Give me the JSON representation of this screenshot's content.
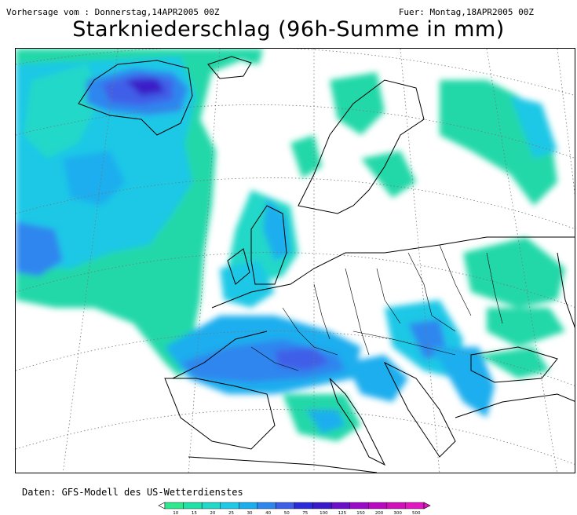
{
  "header": {
    "left": "Vorhersage vom : Donnerstag,14APR2005 00Z",
    "right": "Fuer: Montag,18APR2005 00Z"
  },
  "title": "Starkniederschlag (96h-Summe in mm)",
  "source": "Daten: GFS-Modell des US-Wetterdienstes",
  "legend": {
    "ticks": [
      "10",
      "15",
      "20",
      "25",
      "30",
      "40",
      "50",
      "75",
      "100",
      "125",
      "150",
      "200",
      "300",
      "500"
    ],
    "colors": [
      "#2ee88e",
      "#21e0a8",
      "#22d8c8",
      "#1fc8e6",
      "#1aaeee",
      "#2d86ee",
      "#3f5ee8",
      "#2a2ad8",
      "#3a1ac8",
      "#6a10c8",
      "#9a08c8",
      "#b808c0",
      "#d010b8",
      "#e018c0"
    ]
  },
  "map": {
    "region": "Europe / North Atlantic",
    "field": "96h precipitation sum (mm)"
  }
}
